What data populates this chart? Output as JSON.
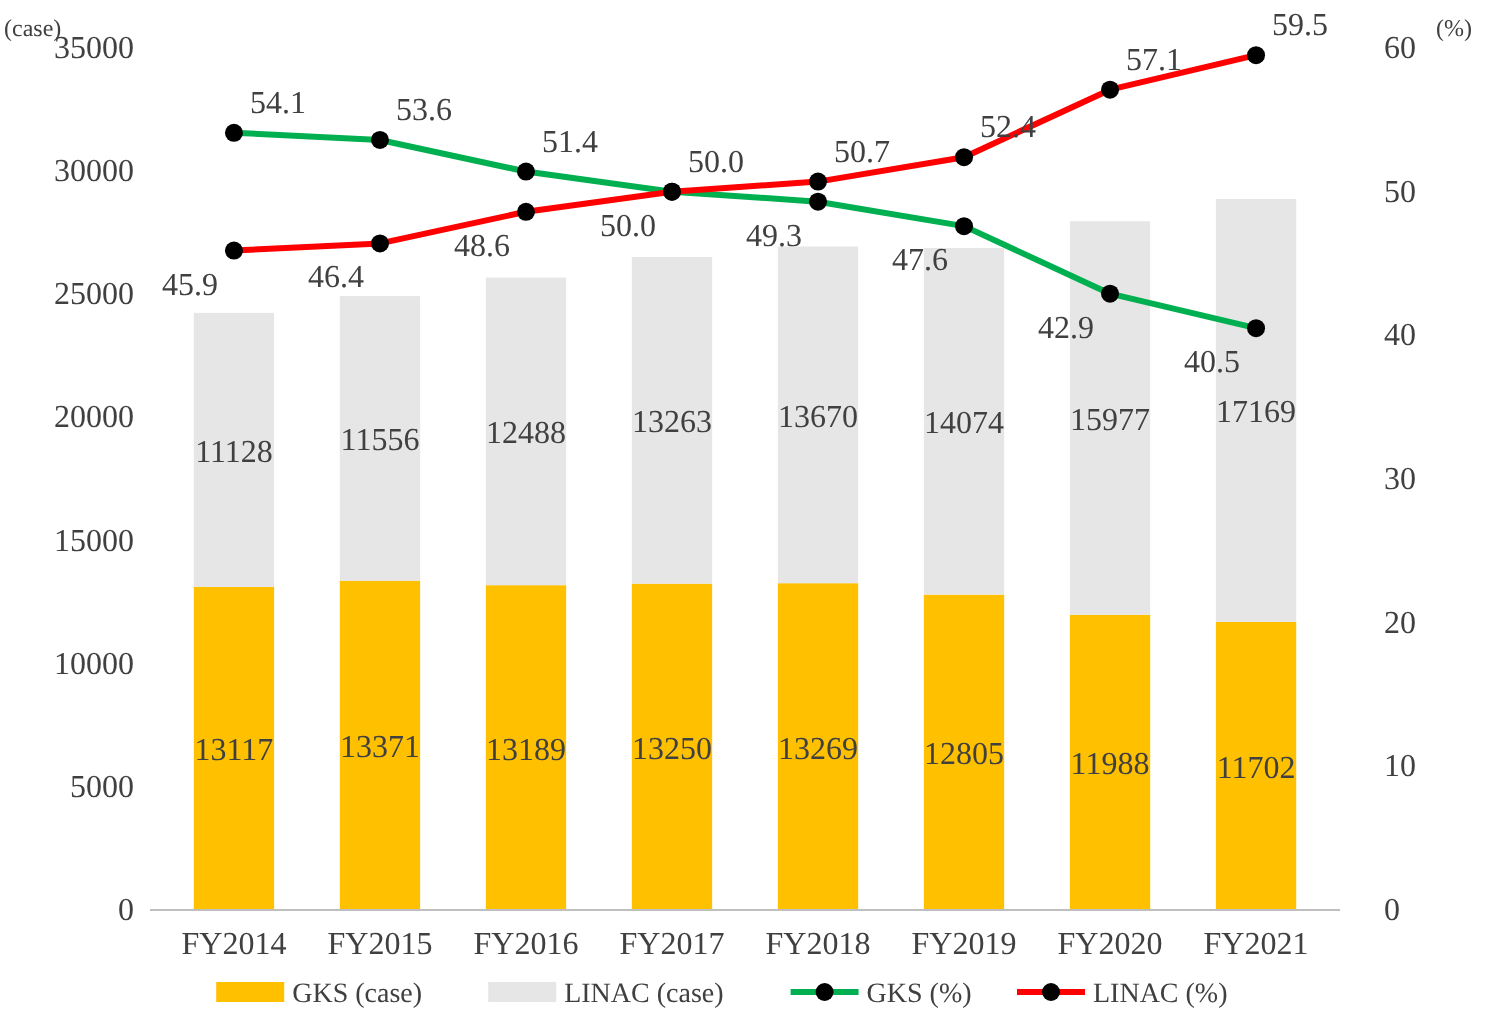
{
  "chart_data": {
    "type": "bar",
    "stacked": true,
    "categories": [
      "FY2014",
      "FY2015",
      "FY2016",
      "FY2017",
      "FY2018",
      "FY2019",
      "FY2020",
      "FY2021"
    ],
    "ylabel": "(case)",
    "y2label": "(%)",
    "ylim": [
      0,
      35000
    ],
    "yticks": [
      0,
      5000,
      10000,
      15000,
      20000,
      25000,
      30000,
      35000
    ],
    "y2lim": [
      0,
      60
    ],
    "y2ticks": [
      0,
      10,
      20,
      30,
      40,
      50,
      60
    ],
    "series": [
      {
        "name": "GKS (case)",
        "color": "#ffc000",
        "values": [
          13117,
          13371,
          13189,
          13250,
          13269,
          12805,
          11988,
          11702
        ]
      },
      {
        "name": "LINAC (case)",
        "color": "#e7e6e6",
        "values": [
          11128,
          11556,
          12488,
          13263,
          13670,
          14074,
          15977,
          17169
        ]
      },
      {
        "name": "GKS (%)",
        "type": "line",
        "axis": "y2",
        "color": "#00b050",
        "values": [
          54.1,
          53.6,
          51.4,
          50.0,
          49.3,
          47.6,
          42.9,
          40.5
        ],
        "value_labels": [
          "54.1",
          "53.6",
          "51.4",
          "50.0",
          "49.3",
          "47.6",
          "42.9",
          "40.5"
        ]
      },
      {
        "name": "LINAC (%)",
        "type": "line",
        "axis": "y2",
        "color": "#ff0000",
        "values": [
          45.9,
          46.4,
          48.6,
          50.0,
          50.7,
          52.4,
          57.1,
          59.5
        ],
        "value_labels": [
          "45.9",
          "46.4",
          "48.6",
          "50.0",
          "50.7",
          "52.4",
          "57.1",
          "59.5"
        ]
      }
    ],
    "data_labels": true,
    "marker": "circle",
    "line_style": "solid",
    "legend": "bottom",
    "grid": false
  }
}
